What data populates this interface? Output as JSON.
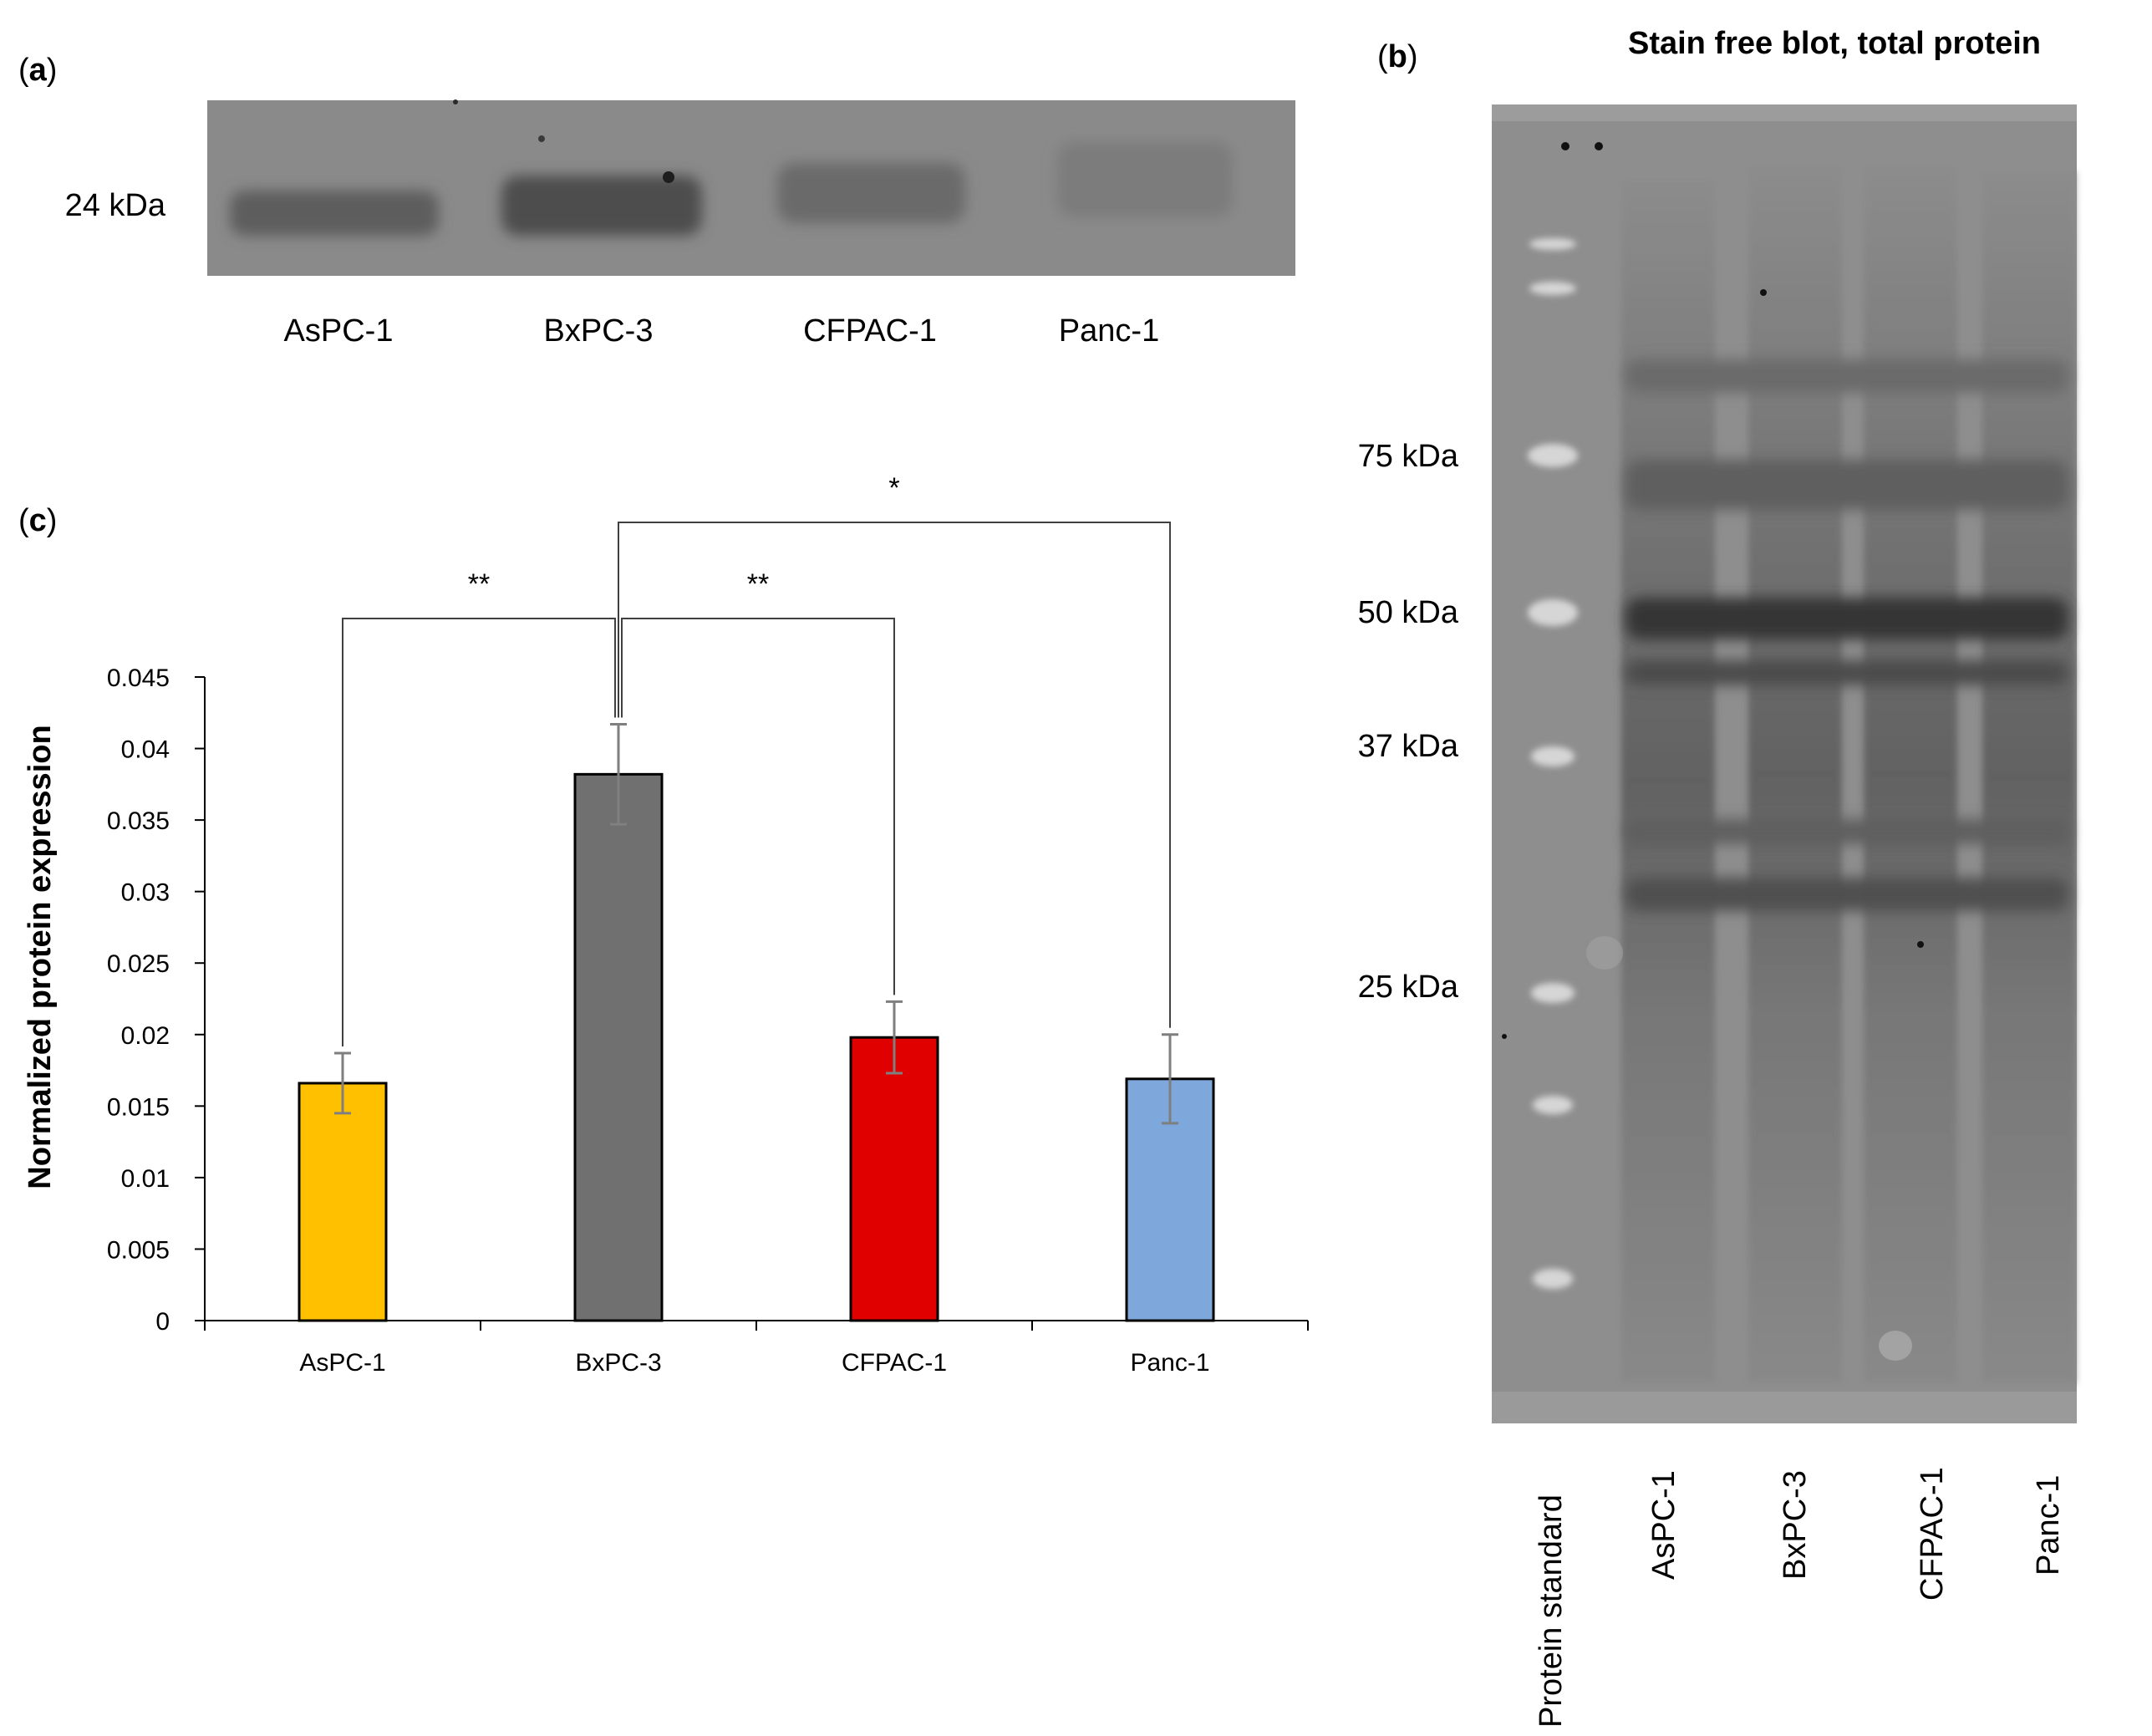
{
  "panel_a": {
    "label_open": "(",
    "label_letter": "a",
    "label_close": ")",
    "size_marker": "24 kDa",
    "lanes": [
      "AsPC-1",
      "BxPC-3",
      "CFPAC-1",
      "Panc-1"
    ]
  },
  "panel_b": {
    "label_open": "(",
    "label_letter": "b",
    "label_close": ")",
    "title": "Stain free blot, total protein",
    "markers": [
      "75 kDa",
      "50 kDa",
      "37 kDa",
      "25 kDa"
    ],
    "lanes": [
      "Protein standard",
      "AsPC-1",
      "BxPC-3",
      "CFPAC-1",
      "Panc-1"
    ]
  },
  "panel_c": {
    "label_open": "(",
    "label_letter": "c",
    "label_close": ")"
  },
  "chart_data": {
    "type": "bar",
    "title": "",
    "xlabel": "",
    "ylabel": "Normalized protein expression",
    "categories": [
      "AsPC-1",
      "BxPC-3",
      "CFPAC-1",
      "Panc-1"
    ],
    "values": [
      0.0166,
      0.0382,
      0.0198,
      0.0169
    ],
    "errors": [
      0.0021,
      0.0035,
      0.0025,
      0.0031
    ],
    "colors": [
      "#FFC000",
      "#707070",
      "#E00000",
      "#7EA8DC"
    ],
    "ylim": [
      0,
      0.045
    ],
    "yticks": [
      "0",
      "0.005",
      "0.01",
      "0.015",
      "0.02",
      "0.025",
      "0.03",
      "0.035",
      "0.04",
      "0.045"
    ],
    "grid": false,
    "legend": "none",
    "significance": [
      {
        "from": "BxPC-3",
        "to": "AsPC-1",
        "label": "**"
      },
      {
        "from": "BxPC-3",
        "to": "CFPAC-1",
        "label": "**"
      },
      {
        "from": "BxPC-3",
        "to": "Panc-1",
        "label": "*"
      }
    ]
  }
}
